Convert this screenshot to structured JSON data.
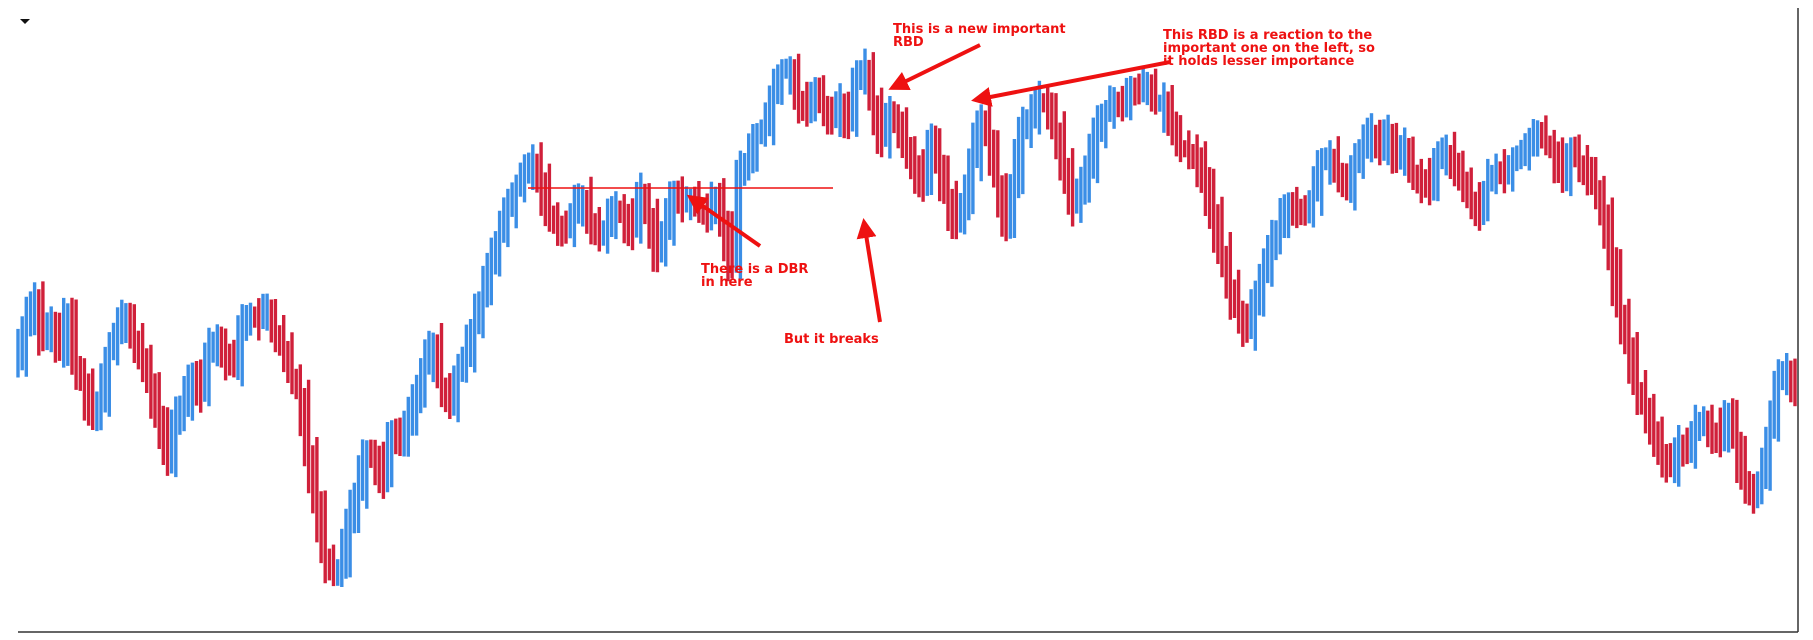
{
  "chart_data": {
    "type": "line",
    "title": "",
    "xlabel": "",
    "ylabel": "",
    "ylim": [
      0,
      100
    ],
    "grid": false,
    "legend": "none",
    "colors": {
      "up": "#3b8ee6",
      "down": "#d0203a",
      "annotation": "#ee1111",
      "level_line": "#ee1111",
      "axis": "#333333"
    },
    "series": [
      {
        "values": [
          45,
          53,
          58,
          49,
          53,
          47,
          55,
          44,
          41,
          34,
          38,
          47,
          51,
          55,
          49,
          46,
          41,
          34,
          26,
          33,
          36,
          43,
          39,
          48,
          50,
          46,
          44,
          52,
          55,
          53,
          56,
          51,
          48,
          42,
          39,
          27,
          18,
          7,
          3,
          5,
          14,
          20,
          27,
          26,
          22,
          31,
          29,
          33,
          38,
          44,
          49,
          41,
          37,
          43,
          46,
          52,
          58,
          65,
          70,
          75,
          79,
          82,
          85,
          81,
          75,
          72,
          71,
          75,
          78,
          73,
          70,
          72,
          76,
          74,
          71,
          79,
          74,
          66,
          71,
          79,
          76,
          78,
          75,
          74,
          78,
          73,
          64,
          83,
          85,
          90,
          92,
          98,
          103,
          104,
          97,
          95,
          99,
          96,
          93,
          97,
          92,
          101,
          104,
          97,
          89,
          94,
          92,
          88,
          84,
          80,
          90,
          84,
          78,
          72,
          76,
          85,
          94,
          89,
          81,
          72,
          80,
          91,
          94,
          97,
          96,
          91,
          84,
          76,
          79,
          84,
          91,
          94,
          97,
          95,
          100,
          98,
          101,
          97,
          97,
          92,
          88,
          87,
          86,
          81,
          74,
          67,
          60,
          55,
          51,
          57,
          62,
          68,
          72,
          77,
          75,
          74,
          78,
          85,
          86,
          82,
          79,
          84,
          88,
          91,
          88,
          91,
          85,
          88,
          82,
          81,
          79,
          85,
          87,
          84,
          81,
          77,
          75,
          80,
          83,
          82,
          85,
          86,
          88,
          91,
          89,
          87,
          82,
          87,
          85,
          83,
          80,
          75,
          65,
          55,
          48,
          40,
          37,
          31,
          26,
          24,
          29,
          27,
          32,
          34,
          31,
          30,
          35,
          29,
          21,
          19,
          22,
          31,
          41,
          43,
          40
        ]
      }
    ],
    "annotations": [
      {
        "text_lines": [
          "This is a new important",
          "RBD"
        ]
      },
      {
        "text_lines": [
          "This RBD is a reaction to the",
          "important one on the left, so",
          "it holds lesser importance"
        ]
      },
      {
        "text_lines": [
          "There is a DBR",
          "in here"
        ]
      },
      {
        "text_lines": [
          "But it breaks"
        ]
      }
    ]
  }
}
